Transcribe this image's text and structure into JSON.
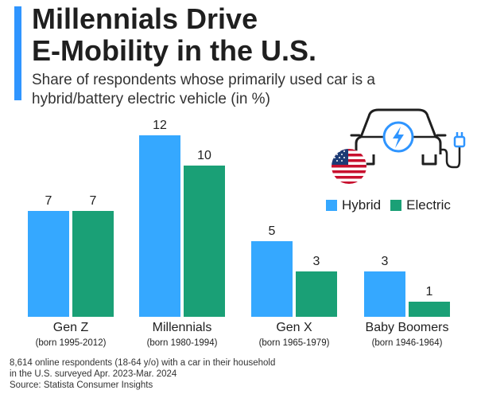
{
  "header": {
    "title_line1": "Millennials Drive",
    "title_line2": "E-Mobility in the U.S.",
    "subtitle": "Share of respondents whose primarily used car is a hybrid/battery electric vehicle (in %)"
  },
  "legend": [
    {
      "name": "Hybrid",
      "color": "#35a8ff"
    },
    {
      "name": "Electric",
      "color": "#1aa076"
    }
  ],
  "chart_data": {
    "type": "bar",
    "categories": [
      "Gen Z",
      "Millennials",
      "Gen X",
      "Baby Boomers"
    ],
    "category_sublabels": [
      "(born 1995-2012)",
      "(born 1980-1994)",
      "(born 1965-1979)",
      "(born 1946-1964)"
    ],
    "series": [
      {
        "name": "Hybrid",
        "values": [
          7,
          12,
          5,
          3
        ],
        "color": "#35a8ff"
      },
      {
        "name": "Electric",
        "values": [
          7,
          10,
          3,
          1
        ],
        "color": "#1aa076"
      }
    ],
    "title": "Millennials Drive E-Mobility in the U.S.",
    "ylim": [
      0,
      12
    ],
    "grid": false,
    "legend_position": "right",
    "data_labels": true
  },
  "footnote": {
    "line1": "8,614 online respondents (18-64 y/o) with a car in their household",
    "line2": "in the U.S. surveyed Apr. 2023-Mar. 2024",
    "source": "Source: Statista Consumer Insights"
  },
  "icons": [
    "electric-car-icon",
    "us-flag-icon"
  ]
}
